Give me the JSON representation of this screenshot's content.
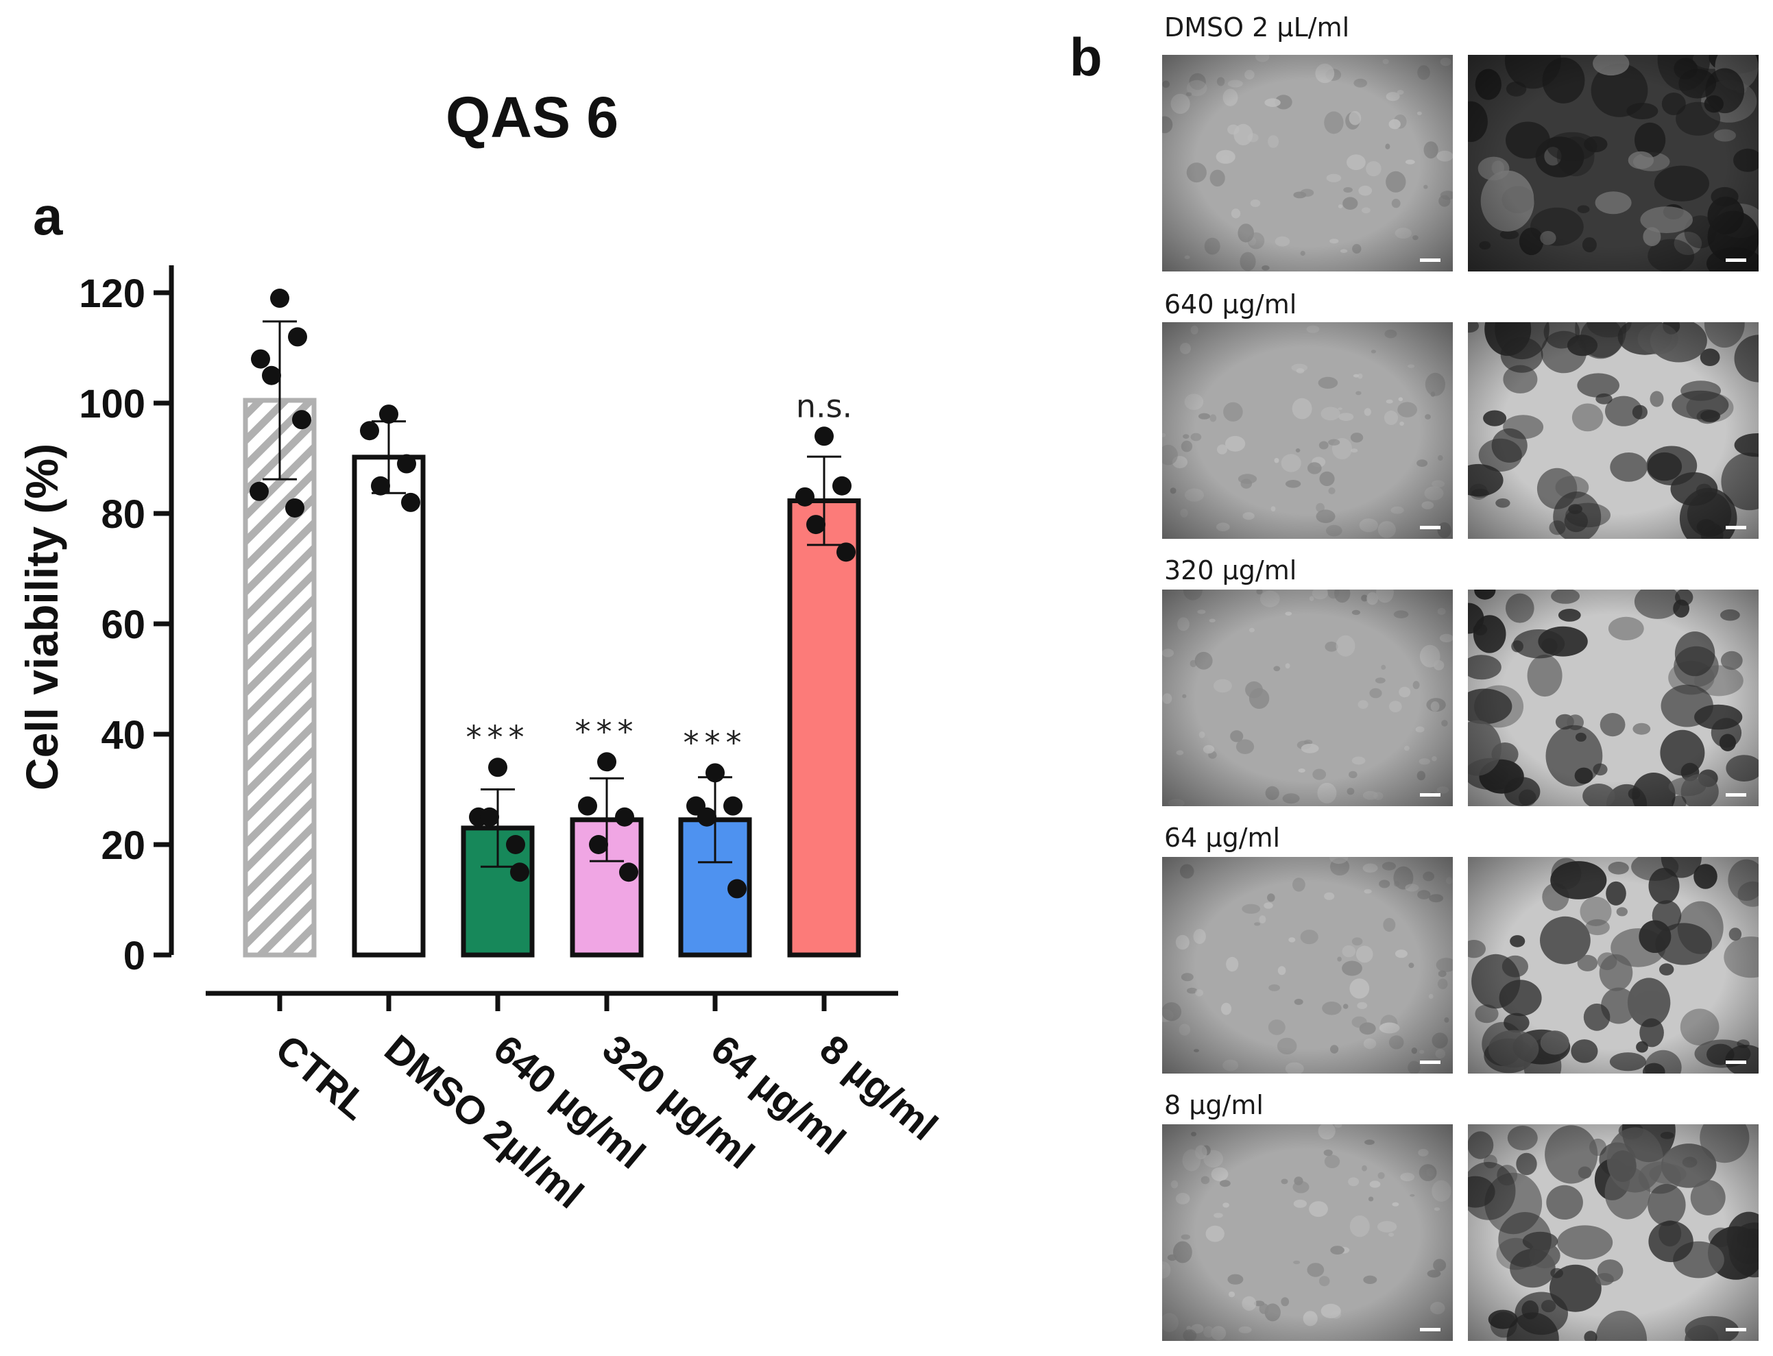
{
  "panels": {
    "a": "a",
    "b": "b"
  },
  "chart_data": {
    "type": "bar",
    "title": "QAS 6",
    "ylabel": "Cell viability (%)",
    "xlabel": "",
    "ylim": [
      0,
      120
    ],
    "yticks": [
      0,
      20,
      40,
      60,
      80,
      100,
      120
    ],
    "categories": [
      "CTRL",
      "DMSO 2µl/ml",
      "640 µg/ml",
      "320 µg/ml",
      "64 µg/ml",
      "8 µg/ml"
    ],
    "values": [
      100.5,
      90.2,
      23.0,
      24.5,
      24.5,
      82.3
    ],
    "errors": [
      14.3,
      6.5,
      7.0,
      7.5,
      7.7,
      8.0
    ],
    "points": [
      [
        119,
        108,
        112,
        105,
        97,
        84,
        81
      ],
      [
        98,
        95,
        89,
        85,
        82
      ],
      [
        34,
        25,
        20,
        25,
        15
      ],
      [
        35,
        27,
        25,
        20,
        15
      ],
      [
        33,
        27,
        27,
        25,
        12
      ],
      [
        94,
        83,
        85,
        78,
        73
      ]
    ],
    "significance": [
      "",
      "",
      "***",
      "***",
      "***",
      "n.s."
    ],
    "colors": [
      "#b0b0b0",
      "#ffffff",
      "#17885a",
      "#f0a6e4",
      "#4e92f0",
      "#fc7b79"
    ],
    "hatched": [
      true,
      false,
      false,
      false,
      false,
      false
    ],
    "grid": false
  },
  "micrographs": {
    "rows": [
      {
        "label": "DMSO 2 µL/ml"
      },
      {
        "label": "640 µg/ml"
      },
      {
        "label": "320 µg/ml"
      },
      {
        "label": "64 µg/ml"
      },
      {
        "label": "8 µg/ml"
      }
    ]
  }
}
